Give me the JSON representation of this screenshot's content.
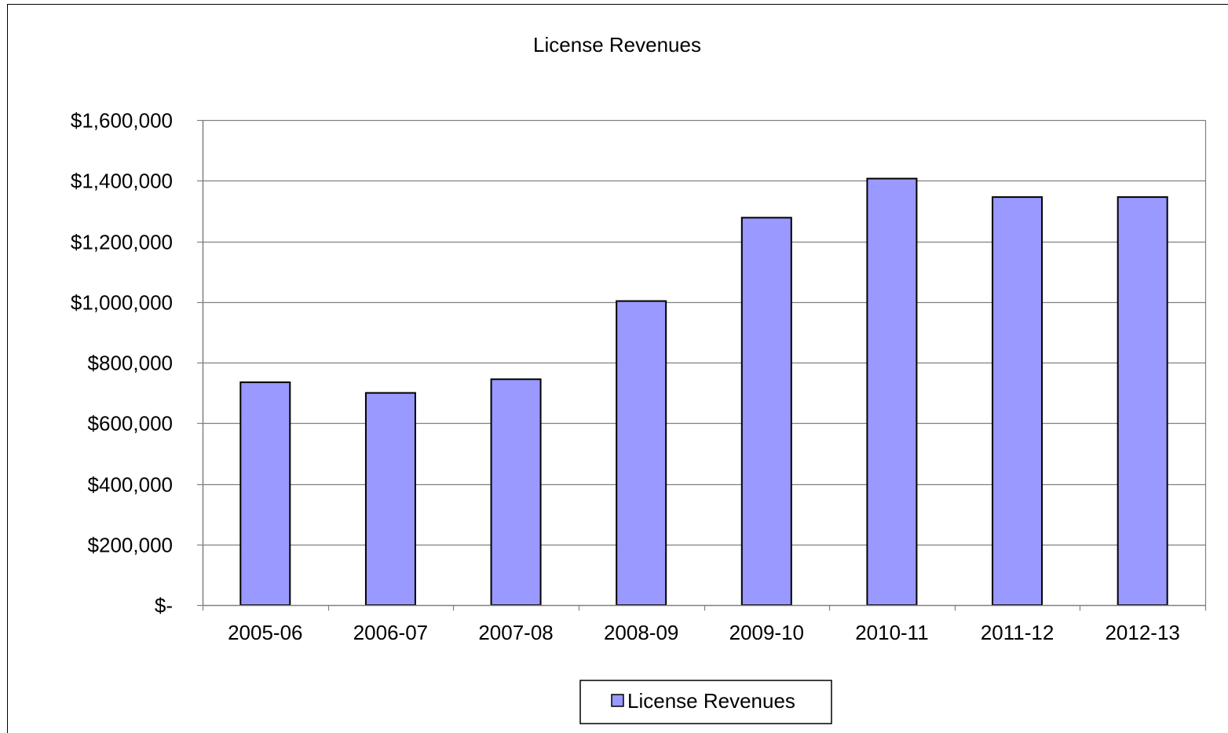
{
  "chart_data": {
    "type": "bar",
    "title": "License Revenues",
    "xlabel": "",
    "ylabel": "",
    "categories": [
      "2005-06",
      "2006-07",
      "2007-08",
      "2008-09",
      "2009-10",
      "2010-11",
      "2011-12",
      "2012-13"
    ],
    "series": [
      {
        "name": "License Revenues",
        "values": [
          735000,
          700000,
          745000,
          1003000,
          1278000,
          1407000,
          1346000,
          1346000
        ]
      }
    ],
    "ylim": [
      0,
      1600000
    ],
    "yticks": [
      0,
      200000,
      400000,
      600000,
      800000,
      1000000,
      1200000,
      1400000,
      1600000
    ],
    "ytick_labels": [
      "$-",
      "$200,000",
      "$400,000",
      "$600,000",
      "$800,000",
      "$1,000,000",
      "$1,200,000",
      "$1,400,000",
      "$1,600,000"
    ],
    "grid": true,
    "legend_position": "bottom",
    "colors": {
      "bar_fill": "#9999FF",
      "bar_stroke": "#000000",
      "gridline": "#808080",
      "axis": "#808080",
      "plot_border": "#808080"
    }
  }
}
